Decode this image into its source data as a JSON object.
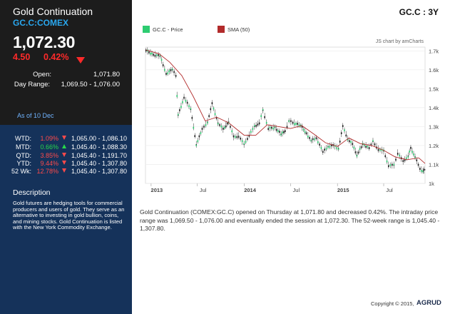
{
  "quote": {
    "title": "Gold Continuation",
    "symbol": "GC.C:COMEX",
    "price": "1,072.30",
    "change": "4.50",
    "change_pct": "0.42%",
    "open_label": "Open:",
    "open_value": "1,071.80",
    "range_label": "Day Range:",
    "range_value": "1,069.50 - 1,076.00",
    "as_of": "As of 10 Dec"
  },
  "performance": [
    {
      "label": "WTD:",
      "pct": "1.09%",
      "dir": "down",
      "range": "1,065.00 - 1,086.10"
    },
    {
      "label": "MTD:",
      "pct": "0.66%",
      "dir": "up",
      "range": "1,045.40 - 1,088.30"
    },
    {
      "label": "QTD:",
      "pct": "3.85%",
      "dir": "down",
      "range": "1,045.40 - 1,191.70"
    },
    {
      "label": "YTD:",
      "pct": "9.44%",
      "dir": "down",
      "range": "1,045.40 - 1,307.80"
    },
    {
      "label": "52 Wk:",
      "pct": "12.78%",
      "dir": "down",
      "range": "1,045.40 - 1,307.80"
    }
  ],
  "description": {
    "title": "Description",
    "text": "Gold futures are hedging tools for commercial producers and users of gold. They serve as an alternative to investing in gold bullion, coins, and mining stocks. Gold Continuation is listed with the New York Commodity Exchange."
  },
  "header": {
    "ticker_period": "GC.C : 3Y"
  },
  "chart_data": {
    "type": "line",
    "legend": [
      "GC.C - Price",
      "SMA (50)"
    ],
    "legend_colors": [
      "#2ecc71",
      "#b22b2b"
    ],
    "credit": "JS chart by amCharts",
    "x_ticks": [
      "2013",
      "Jul",
      "2014",
      "Jul",
      "2015",
      "Jul"
    ],
    "y_ticks": [
      "1.7k",
      "1.6k",
      "1.5k",
      "1.4k",
      "1.3k",
      "1.2k",
      "1.1k",
      "1k"
    ],
    "ylim": [
      1000,
      1720
    ],
    "x_range": [
      "2012-12-10",
      "2015-12-10"
    ],
    "series": [
      {
        "name": "GC.C - Price",
        "x": [
          "2012-12-12",
          "2013-01-10",
          "2013-02-05",
          "2013-03-01",
          "2013-03-25",
          "2013-04-08",
          "2013-04-17",
          "2013-05-10",
          "2013-06-05",
          "2013-06-27",
          "2013-07-20",
          "2013-08-10",
          "2013-08-28",
          "2013-09-20",
          "2013-10-10",
          "2013-11-01",
          "2013-11-20",
          "2013-12-10",
          "2013-12-31",
          "2014-01-20",
          "2014-02-10",
          "2014-03-01",
          "2014-03-15",
          "2014-04-05",
          "2014-05-01",
          "2014-05-25",
          "2014-06-10",
          "2014-06-25",
          "2014-07-10",
          "2014-08-10",
          "2014-09-01",
          "2014-09-20",
          "2014-10-10",
          "2014-11-05",
          "2014-11-25",
          "2014-12-15",
          "2015-01-05",
          "2015-01-22",
          "2015-02-10",
          "2015-03-01",
          "2015-03-18",
          "2015-04-10",
          "2015-05-05",
          "2015-05-20",
          "2015-06-10",
          "2015-07-01",
          "2015-07-20",
          "2015-08-10",
          "2015-08-25",
          "2015-09-15",
          "2015-10-05",
          "2015-10-15",
          "2015-11-01",
          "2015-11-20",
          "2015-12-02",
          "2015-12-10"
        ],
        "values": [
          1702,
          1680,
          1672,
          1580,
          1600,
          1570,
          1360,
          1455,
          1390,
          1205,
          1285,
          1325,
          1420,
          1320,
          1285,
          1325,
          1245,
          1250,
          1205,
          1255,
          1300,
          1320,
          1385,
          1290,
          1295,
          1260,
          1275,
          1330,
          1320,
          1305,
          1265,
          1225,
          1240,
          1165,
          1195,
          1200,
          1185,
          1300,
          1235,
          1205,
          1150,
          1205,
          1190,
          1220,
          1180,
          1170,
          1095,
          1095,
          1160,
          1115,
          1145,
          1185,
          1140,
          1075,
          1065,
          1072
        ]
      },
      {
        "name": "SMA (50)",
        "x": [
          "2012-12-12",
          "2013-02-01",
          "2013-03-15",
          "2013-05-01",
          "2013-06-15",
          "2013-08-01",
          "2013-09-15",
          "2013-11-01",
          "2013-12-31",
          "2014-02-15",
          "2014-04-01",
          "2014-05-15",
          "2014-07-01",
          "2014-08-15",
          "2014-10-01",
          "2014-11-15",
          "2015-01-01",
          "2015-02-15",
          "2015-04-01",
          "2015-05-15",
          "2015-07-01",
          "2015-08-15",
          "2015-10-01",
          "2015-11-15",
          "2015-12-10"
        ],
        "values": [
          1705,
          1685,
          1640,
          1570,
          1460,
          1330,
          1350,
          1320,
          1255,
          1255,
          1310,
          1300,
          1290,
          1305,
          1260,
          1215,
          1195,
          1240,
          1210,
          1200,
          1175,
          1140,
          1125,
          1135,
          1105
        ]
      }
    ]
  },
  "summary_text": "Gold Continuation (COMEX:GC.C) opened on Thursday at 1,071.80 and decreased 0.42%. The intraday price range was 1,069.50 - 1,076.00 and eventually ended the session at 1,072.30. The 52-week range is 1,045.40 - 1,307.80.",
  "footer": {
    "copyright": "Copyright © 2015,",
    "brand": "AGRUD"
  },
  "colors": {
    "up": "#27d94a",
    "down": "#ff2a2a",
    "panel": "#15325a",
    "quote_bg": "#1c1c1c",
    "accent": "#2aa7ee"
  }
}
